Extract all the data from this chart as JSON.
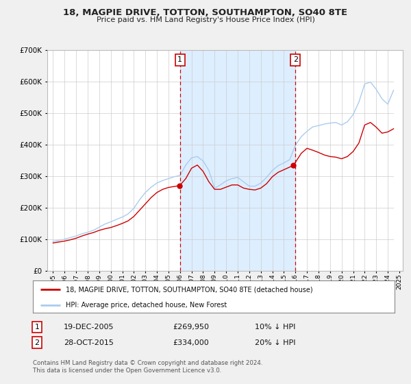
{
  "title": "18, MAGPIE DRIVE, TOTTON, SOUTHAMPTON, SO40 8TE",
  "subtitle": "Price paid vs. HM Land Registry's House Price Index (HPI)",
  "legend_line1": "18, MAGPIE DRIVE, TOTTON, SOUTHAMPTON, SO40 8TE (detached house)",
  "legend_line2": "HPI: Average price, detached house, New Forest",
  "annotation1_date": "19-DEC-2005",
  "annotation1_price": "£269,950",
  "annotation1_hpi": "10% ↓ HPI",
  "annotation2_date": "28-OCT-2015",
  "annotation2_price": "£334,000",
  "annotation2_hpi": "20% ↓ HPI",
  "footer1": "Contains HM Land Registry data © Crown copyright and database right 2024.",
  "footer2": "This data is licensed under the Open Government Licence v3.0.",
  "vline1_x": 2006.0,
  "vline2_x": 2016.0,
  "hatch_start": 2024.5,
  "sale1_x": 2005.97,
  "sale1_y": 269950,
  "sale2_x": 2015.83,
  "sale2_y": 334000,
  "hpi_color": "#aaccee",
  "price_color": "#CC0000",
  "vline_color": "#CC0000",
  "shade_color": "#ddeeff",
  "ylim": [
    0,
    700000
  ],
  "xlim_start": 1994.5,
  "xlim_end": 2025.3,
  "background_color": "#f0f0f0",
  "plot_bg_color": "#ffffff",
  "hpi_data": {
    "years": [
      1995.0,
      1995.5,
      1996.0,
      1996.5,
      1997.0,
      1997.5,
      1998.0,
      1998.5,
      1999.0,
      1999.5,
      2000.0,
      2000.5,
      2001.0,
      2001.5,
      2002.0,
      2002.5,
      2003.0,
      2003.5,
      2004.0,
      2004.5,
      2005.0,
      2005.5,
      2006.0,
      2006.5,
      2007.0,
      2007.5,
      2008.0,
      2008.5,
      2009.0,
      2009.5,
      2010.0,
      2010.5,
      2011.0,
      2011.5,
      2012.0,
      2012.5,
      2013.0,
      2013.5,
      2014.0,
      2014.5,
      2015.0,
      2015.5,
      2016.0,
      2016.5,
      2017.0,
      2017.5,
      2018.0,
      2018.5,
      2019.0,
      2019.5,
      2020.0,
      2020.5,
      2021.0,
      2021.5,
      2022.0,
      2022.5,
      2023.0,
      2023.5,
      2024.0,
      2024.5
    ],
    "values": [
      93000,
      96000,
      100000,
      105000,
      110000,
      117000,
      122000,
      128000,
      138000,
      148000,
      155000,
      163000,
      170000,
      180000,
      198000,
      225000,
      248000,
      265000,
      278000,
      286000,
      292000,
      298000,
      302000,
      335000,
      358000,
      362000,
      348000,
      318000,
      262000,
      272000,
      285000,
      292000,
      296000,
      282000,
      268000,
      268000,
      278000,
      296000,
      318000,
      333000,
      342000,
      352000,
      398000,
      425000,
      442000,
      456000,
      460000,
      465000,
      468000,
      470000,
      462000,
      472000,
      495000,
      535000,
      592000,
      598000,
      575000,
      545000,
      528000,
      572000
    ]
  },
  "price_data": {
    "years": [
      1995.0,
      1995.5,
      1996.0,
      1996.5,
      1997.0,
      1997.5,
      1998.0,
      1998.5,
      1999.0,
      1999.5,
      2000.0,
      2000.5,
      2001.0,
      2001.5,
      2002.0,
      2002.5,
      2003.0,
      2003.5,
      2004.0,
      2004.5,
      2005.0,
      2005.97,
      2006.5,
      2007.0,
      2007.5,
      2008.0,
      2008.5,
      2009.0,
      2009.5,
      2010.0,
      2010.5,
      2011.0,
      2011.5,
      2012.0,
      2012.5,
      2013.0,
      2013.5,
      2014.0,
      2014.5,
      2015.83,
      2016.5,
      2017.0,
      2017.5,
      2018.0,
      2018.5,
      2019.0,
      2019.5,
      2020.0,
      2020.5,
      2021.0,
      2021.5,
      2022.0,
      2022.5,
      2023.0,
      2023.5,
      2024.0,
      2024.5
    ],
    "values": [
      88000,
      91000,
      94000,
      98000,
      103000,
      110000,
      116000,
      121000,
      128000,
      133000,
      137000,
      143000,
      150000,
      158000,
      172000,
      192000,
      212000,
      232000,
      248000,
      258000,
      264000,
      269950,
      292000,
      325000,
      335000,
      315000,
      282000,
      258000,
      258000,
      265000,
      272000,
      272000,
      262000,
      258000,
      256000,
      262000,
      276000,
      298000,
      312000,
      334000,
      372000,
      388000,
      382000,
      375000,
      367000,
      362000,
      360000,
      355000,
      362000,
      378000,
      405000,
      462000,
      470000,
      455000,
      436000,
      440000,
      450000
    ]
  }
}
